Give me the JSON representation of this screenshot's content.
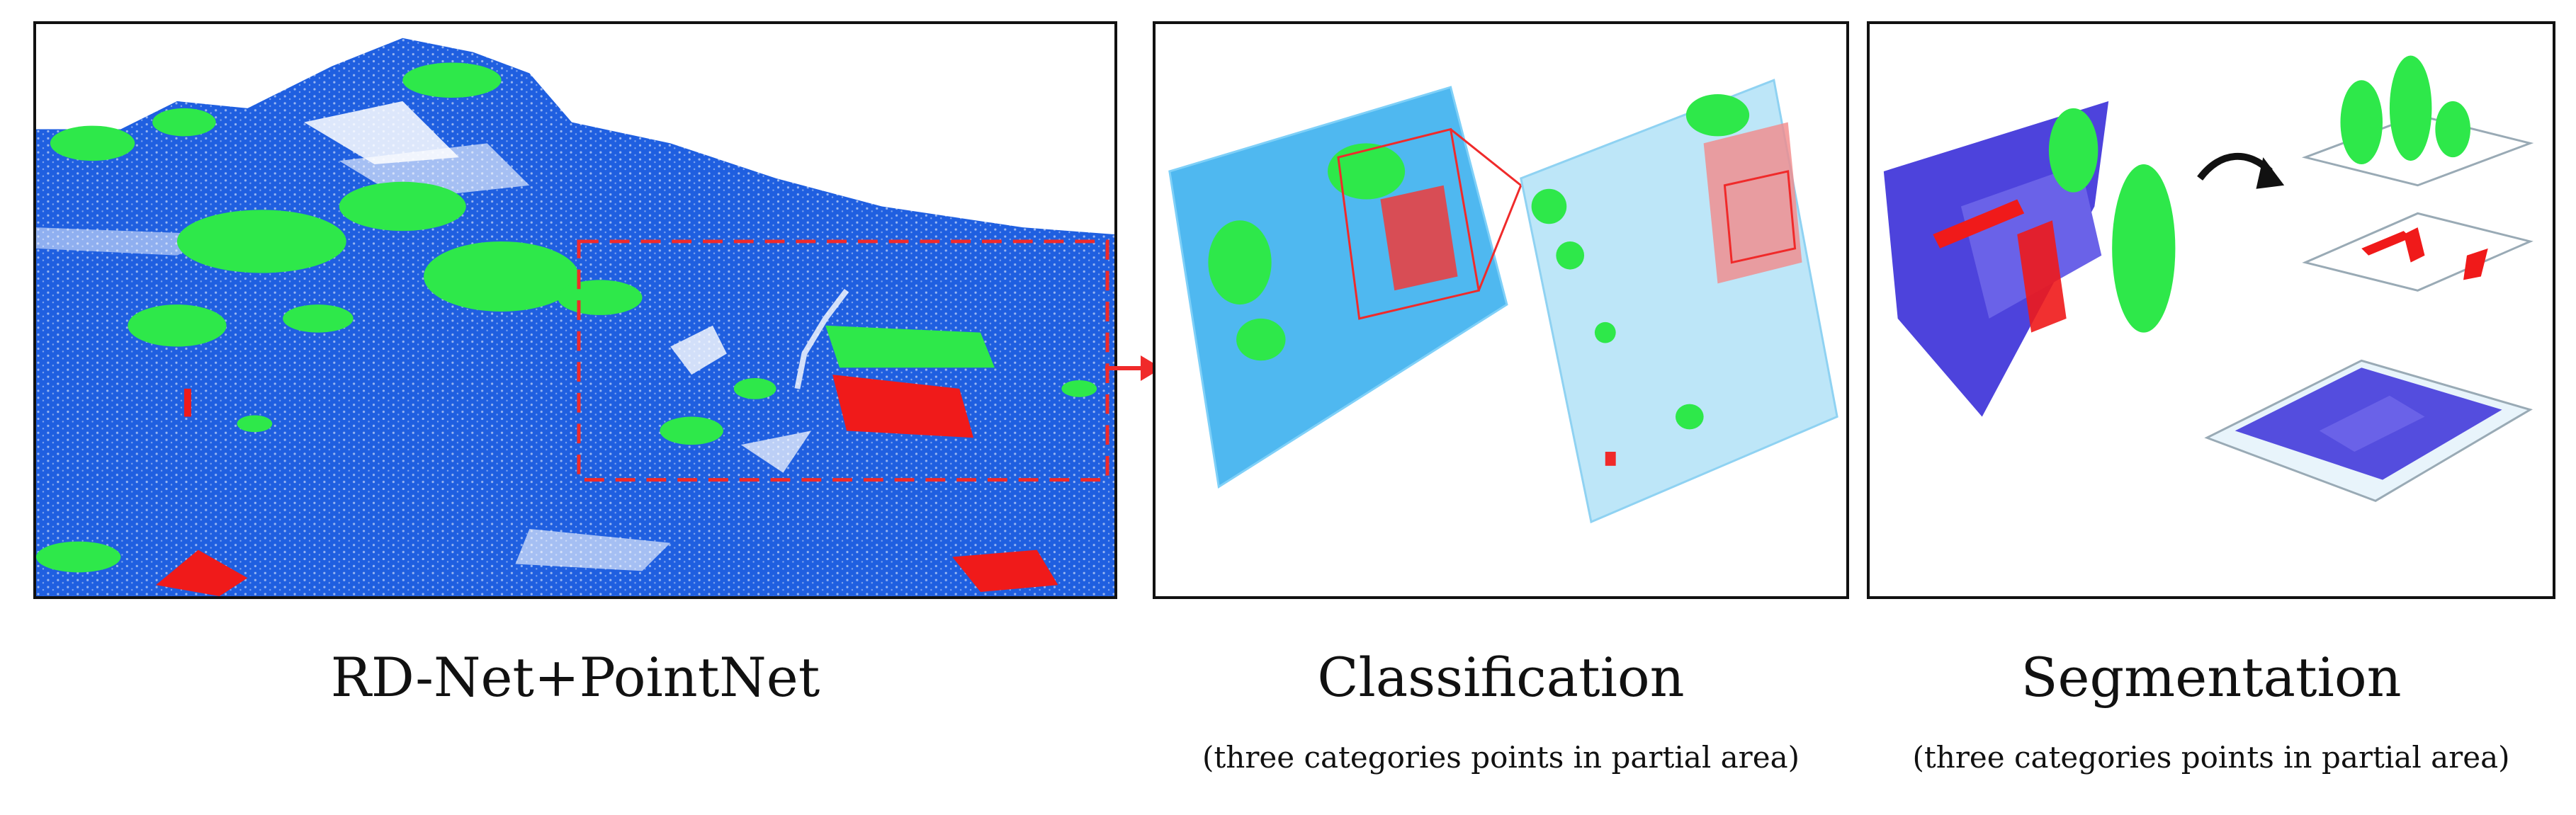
{
  "captions": {
    "rdnet": "RD-Net+PointNet",
    "classification": "Classification",
    "classification_sub": "(three categories points in partial area)",
    "segmentation": "Segmentation",
    "segmentation_sub": "(three categories points in partial area)"
  },
  "colors": {
    "ground": "#1f5fe0",
    "ground_light": "#4fb8f0",
    "ground_seg": "#3a2fd8",
    "vegetation": "#2ee84a",
    "building": "#f01a1a",
    "highlight_box": "#f02a2a",
    "arrow": "#111111"
  }
}
